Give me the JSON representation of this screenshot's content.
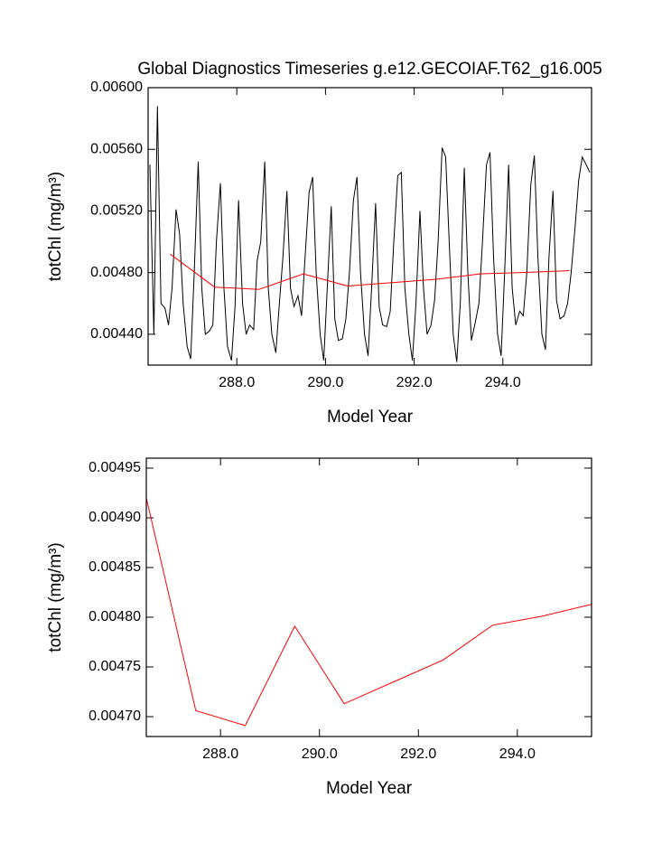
{
  "chart_data": [
    {
      "type": "line",
      "title": "Global Diagnostics Timeseries g.e12.GECOIAF.T62_g16.005",
      "xlabel": "Model Year",
      "ylabel": "totChl (mg/m³)",
      "xlim": [
        286,
        296
      ],
      "ylim": [
        0.0042,
        0.006
      ],
      "xticks": [
        {
          "value": 288,
          "label": "288.0"
        },
        {
          "value": 290,
          "label": "290.0"
        },
        {
          "value": 292,
          "label": "292.0"
        },
        {
          "value": 294,
          "label": "294.0"
        }
      ],
      "yticks": [
        {
          "value": 0.0044,
          "label": "0.00440"
        },
        {
          "value": 0.0048,
          "label": "0.00480"
        },
        {
          "value": 0.0052,
          "label": "0.00520"
        },
        {
          "value": 0.0056,
          "label": "0.00560"
        },
        {
          "value": 0.006,
          "label": "0.00600"
        }
      ],
      "series": [
        {
          "color": "#000000",
          "x": [
            286.04,
            286.13,
            286.21,
            286.29,
            286.38,
            286.46,
            286.54,
            286.63,
            286.71,
            286.79,
            286.88,
            286.96,
            287.04,
            287.13,
            287.21,
            287.29,
            287.38,
            287.46,
            287.54,
            287.63,
            287.71,
            287.79,
            287.88,
            287.96,
            288.04,
            288.13,
            288.21,
            288.29,
            288.38,
            288.46,
            288.54,
            288.63,
            288.71,
            288.79,
            288.88,
            288.96,
            289.04,
            289.13,
            289.21,
            289.29,
            289.38,
            289.46,
            289.54,
            289.63,
            289.71,
            289.79,
            289.88,
            289.96,
            290.04,
            290.13,
            290.21,
            290.29,
            290.38,
            290.46,
            290.54,
            290.63,
            290.71,
            290.79,
            290.88,
            290.96,
            291.04,
            291.13,
            291.21,
            291.29,
            291.38,
            291.46,
            291.54,
            291.63,
            291.71,
            291.79,
            291.88,
            291.96,
            292.04,
            292.13,
            292.21,
            292.29,
            292.38,
            292.46,
            292.54,
            292.63,
            292.71,
            292.79,
            292.88,
            292.96,
            293.04,
            293.13,
            293.21,
            293.29,
            293.38,
            293.46,
            293.54,
            293.63,
            293.71,
            293.79,
            293.88,
            293.96,
            294.04,
            294.13,
            294.21,
            294.29,
            294.38,
            294.46,
            294.54,
            294.63,
            294.71,
            294.79,
            294.88,
            294.96,
            295.04,
            295.13,
            295.21,
            295.29,
            295.38,
            295.46,
            295.54,
            295.63,
            295.71,
            295.79,
            295.88,
            295.96
          ],
          "values": [
            0.0055,
            0.0044,
            0.00588,
            0.0046,
            0.00457,
            0.00446,
            0.0047,
            0.00521,
            0.00505,
            0.0046,
            0.00432,
            0.00424,
            0.0048,
            0.00552,
            0.0047,
            0.0044,
            0.00442,
            0.00446,
            0.005,
            0.00538,
            0.0047,
            0.00432,
            0.00423,
            0.00458,
            0.00527,
            0.0046,
            0.0044,
            0.00446,
            0.00443,
            0.00488,
            0.005,
            0.00552,
            0.0047,
            0.0044,
            0.00428,
            0.0046,
            0.0049,
            0.00533,
            0.0047,
            0.00458,
            0.00465,
            0.00452,
            0.0049,
            0.00532,
            0.00542,
            0.0048,
            0.0044,
            0.00423,
            0.0047,
            0.00523,
            0.0045,
            0.00436,
            0.00437,
            0.0045,
            0.0048,
            0.00527,
            0.00542,
            0.0048,
            0.0044,
            0.00426,
            0.0047,
            0.00525,
            0.00458,
            0.00446,
            0.00445,
            0.00455,
            0.005,
            0.00543,
            0.00545,
            0.0047,
            0.0044,
            0.00423,
            0.0046,
            0.0052,
            0.0047,
            0.0044,
            0.00446,
            0.00462,
            0.005,
            0.00561,
            0.00555,
            0.005,
            0.0044,
            0.00422,
            0.0046,
            0.00548,
            0.0048,
            0.00436,
            0.00448,
            0.0046,
            0.005,
            0.0055,
            0.00558,
            0.0049,
            0.0044,
            0.00426,
            0.0048,
            0.0055,
            0.0047,
            0.00446,
            0.00455,
            0.00452,
            0.0048,
            0.00537,
            0.00556,
            0.0049,
            0.0044,
            0.0043,
            0.0049,
            0.00533,
            0.00462,
            0.0045,
            0.00452,
            0.0046,
            0.0048,
            0.0051,
            0.0054,
            0.00555,
            0.0055,
            0.00545
          ]
        },
        {
          "color": "#ff0000",
          "x": [
            286.5,
            287.5,
            288.5,
            289.5,
            290.5,
            291.5,
            292.5,
            293.5,
            294.5,
            295.5
          ],
          "values": [
            0.00492,
            0.004706,
            0.004691,
            0.004791,
            0.004713,
            0.004735,
            0.004757,
            0.004792,
            0.004801,
            0.004813
          ]
        }
      ]
    },
    {
      "type": "line",
      "xlabel": "Model Year",
      "ylabel": "totChl (mg/m³)",
      "xlim": [
        286.5,
        295.5
      ],
      "ylim": [
        0.00468,
        0.00496
      ],
      "xticks": [
        {
          "value": 288,
          "label": "288.0"
        },
        {
          "value": 290,
          "label": "290.0"
        },
        {
          "value": 292,
          "label": "292.0"
        },
        {
          "value": 294,
          "label": "294.0"
        }
      ],
      "yticks": [
        {
          "value": 0.0047,
          "label": "0.00470"
        },
        {
          "value": 0.00475,
          "label": "0.00475"
        },
        {
          "value": 0.0048,
          "label": "0.00480"
        },
        {
          "value": 0.00485,
          "label": "0.00485"
        },
        {
          "value": 0.0049,
          "label": "0.00490"
        },
        {
          "value": 0.00495,
          "label": "0.00495"
        }
      ],
      "series": [
        {
          "color": "#ff0000",
          "x": [
            286.5,
            287.5,
            288.5,
            289.5,
            290.5,
            291.5,
            292.5,
            293.5,
            294.5,
            295.5
          ],
          "values": [
            0.00492,
            0.004706,
            0.004691,
            0.004791,
            0.004713,
            0.004735,
            0.004757,
            0.004792,
            0.004801,
            0.004813
          ]
        }
      ]
    }
  ]
}
